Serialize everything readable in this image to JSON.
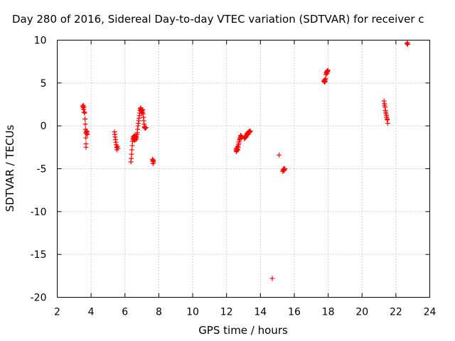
{
  "chart_data": {
    "type": "scatter",
    "title": "Day 280 of 2016, Sidereal Day-to-day VTEC variation (SDTVAR) for receiver c",
    "xlabel": "GPS time / hours",
    "ylabel": "SDTVAR / TECUs",
    "xlim": [
      2,
      24
    ],
    "ylim": [
      -20,
      10
    ],
    "x_ticks": [
      2,
      4,
      6,
      8,
      10,
      12,
      14,
      16,
      18,
      20,
      22,
      24
    ],
    "x_tick_labels": [
      "2",
      "4",
      "6",
      "8",
      "10",
      "12",
      "14",
      "16",
      "18",
      "20",
      "22",
      "24"
    ],
    "y_ticks": [
      -20,
      -15,
      -10,
      -5,
      0,
      5,
      10
    ],
    "y_tick_labels": [
      "-20",
      "-15",
      "-10",
      "-5",
      "0",
      "5",
      "10"
    ],
    "grid": true,
    "marker": "+",
    "color": "#ff0000",
    "series": [
      {
        "name": "SDTVAR",
        "points": [
          [
            3.5,
            2.3
          ],
          [
            3.52,
            2.1
          ],
          [
            3.54,
            2.4
          ],
          [
            3.56,
            1.9
          ],
          [
            3.58,
            2.2
          ],
          [
            3.6,
            1.6
          ],
          [
            3.62,
            1.5
          ],
          [
            3.64,
            0.8
          ],
          [
            3.66,
            0.2
          ],
          [
            3.67,
            -0.4
          ],
          [
            3.68,
            -0.8
          ],
          [
            3.69,
            -1.4
          ],
          [
            3.7,
            -2.1
          ],
          [
            3.7,
            -2.5
          ],
          [
            3.72,
            -0.6
          ],
          [
            3.74,
            -0.9
          ],
          [
            3.76,
            -0.7
          ],
          [
            3.78,
            -1.0
          ],
          [
            5.38,
            -0.7
          ],
          [
            5.4,
            -1.0
          ],
          [
            5.42,
            -1.3
          ],
          [
            5.44,
            -1.6
          ],
          [
            5.46,
            -1.9
          ],
          [
            5.48,
            -2.2
          ],
          [
            5.5,
            -2.5
          ],
          [
            5.52,
            -2.8
          ],
          [
            5.55,
            -2.4
          ],
          [
            5.58,
            -2.6
          ],
          [
            6.35,
            -4.2
          ],
          [
            6.37,
            -3.8
          ],
          [
            6.39,
            -3.3
          ],
          [
            6.41,
            -2.8
          ],
          [
            6.43,
            -2.3
          ],
          [
            6.45,
            -1.8
          ],
          [
            6.47,
            -1.5
          ],
          [
            6.49,
            -1.3
          ],
          [
            6.51,
            -1.6
          ],
          [
            6.53,
            -1.2
          ],
          [
            6.55,
            -1.4
          ],
          [
            6.57,
            -1.7
          ],
          [
            6.59,
            -1.1
          ],
          [
            6.61,
            -1.5
          ],
          [
            6.63,
            -1.3
          ],
          [
            6.65,
            -1.6
          ],
          [
            6.67,
            -1.2
          ],
          [
            6.69,
            -1.4
          ],
          [
            6.71,
            -1.0
          ],
          [
            6.73,
            -0.8
          ],
          [
            6.75,
            -0.4
          ],
          [
            6.77,
            0.0
          ],
          [
            6.79,
            0.3
          ],
          [
            6.81,
            0.6
          ],
          [
            6.83,
            0.9
          ],
          [
            6.85,
            1.2
          ],
          [
            6.87,
            1.5
          ],
          [
            6.89,
            1.8
          ],
          [
            6.91,
            2.0
          ],
          [
            6.93,
            2.1
          ],
          [
            6.95,
            1.9
          ],
          [
            6.97,
            1.7
          ],
          [
            6.99,
            1.5
          ],
          [
            7.01,
            1.8
          ],
          [
            7.03,
            1.6
          ],
          [
            7.05,
            1.9
          ],
          [
            7.07,
            1.4
          ],
          [
            7.09,
            1.0
          ],
          [
            7.11,
            0.6
          ],
          [
            7.13,
            0.2
          ],
          [
            7.15,
            -0.1
          ],
          [
            7.17,
            -0.2
          ],
          [
            7.2,
            -0.3
          ],
          [
            7.25,
            -0.2
          ],
          [
            7.62,
            -3.9
          ],
          [
            7.64,
            -4.1
          ],
          [
            7.66,
            -4.4
          ],
          [
            7.68,
            -4.0
          ],
          [
            7.7,
            -4.2
          ],
          [
            12.55,
            -2.8
          ],
          [
            12.57,
            -3.0
          ],
          [
            12.59,
            -2.6
          ],
          [
            12.61,
            -2.9
          ],
          [
            12.63,
            -2.7
          ],
          [
            12.65,
            -2.4
          ],
          [
            12.67,
            -2.8
          ],
          [
            12.69,
            -2.5
          ],
          [
            12.71,
            -2.2
          ],
          [
            12.73,
            -2.0
          ],
          [
            12.75,
            -1.8
          ],
          [
            12.77,
            -1.6
          ],
          [
            12.79,
            -1.5
          ],
          [
            12.81,
            -1.3
          ],
          [
            12.83,
            -1.1
          ],
          [
            12.85,
            -1.4
          ],
          [
            12.87,
            -1.2
          ],
          [
            13.05,
            -1.5
          ],
          [
            13.07,
            -1.3
          ],
          [
            13.1,
            -1.4
          ],
          [
            13.12,
            -1.2
          ],
          [
            13.15,
            -1.3
          ],
          [
            13.18,
            -1.1
          ],
          [
            13.2,
            -0.9
          ],
          [
            13.22,
            -1.0
          ],
          [
            13.25,
            -0.8
          ],
          [
            13.28,
            -1.0
          ],
          [
            13.3,
            -0.7
          ],
          [
            13.33,
            -0.8
          ],
          [
            13.36,
            -0.6
          ],
          [
            13.38,
            -0.7
          ],
          [
            13.4,
            -0.6
          ],
          [
            14.7,
            -17.8
          ],
          [
            15.1,
            -3.4
          ],
          [
            15.32,
            -5.3
          ],
          [
            15.34,
            -5.1
          ],
          [
            15.36,
            -5.2
          ],
          [
            15.38,
            -5.0
          ],
          [
            15.4,
            -5.2
          ],
          [
            15.42,
            -5.1
          ],
          [
            15.44,
            -5.0
          ],
          [
            17.75,
            5.2
          ],
          [
            17.77,
            5.3
          ],
          [
            17.79,
            5.1
          ],
          [
            17.81,
            5.4
          ],
          [
            17.83,
            5.2
          ],
          [
            17.85,
            5.5
          ],
          [
            17.87,
            6.0
          ],
          [
            17.89,
            6.2
          ],
          [
            17.91,
            6.3
          ],
          [
            17.93,
            6.1
          ],
          [
            17.95,
            6.4
          ],
          [
            17.97,
            6.3
          ],
          [
            17.99,
            6.5
          ],
          [
            21.3,
            2.9
          ],
          [
            21.32,
            2.6
          ],
          [
            21.34,
            2.4
          ],
          [
            21.36,
            2.2
          ],
          [
            21.38,
            1.8
          ],
          [
            21.4,
            1.6
          ],
          [
            21.42,
            1.4
          ],
          [
            21.44,
            1.2
          ],
          [
            21.46,
            1.0
          ],
          [
            21.48,
            0.8
          ],
          [
            21.5,
            0.7
          ],
          [
            21.52,
            0.3
          ],
          [
            22.65,
            9.6
          ],
          [
            22.68,
            9.7
          ],
          [
            22.7,
            9.5
          ]
        ]
      }
    ]
  }
}
